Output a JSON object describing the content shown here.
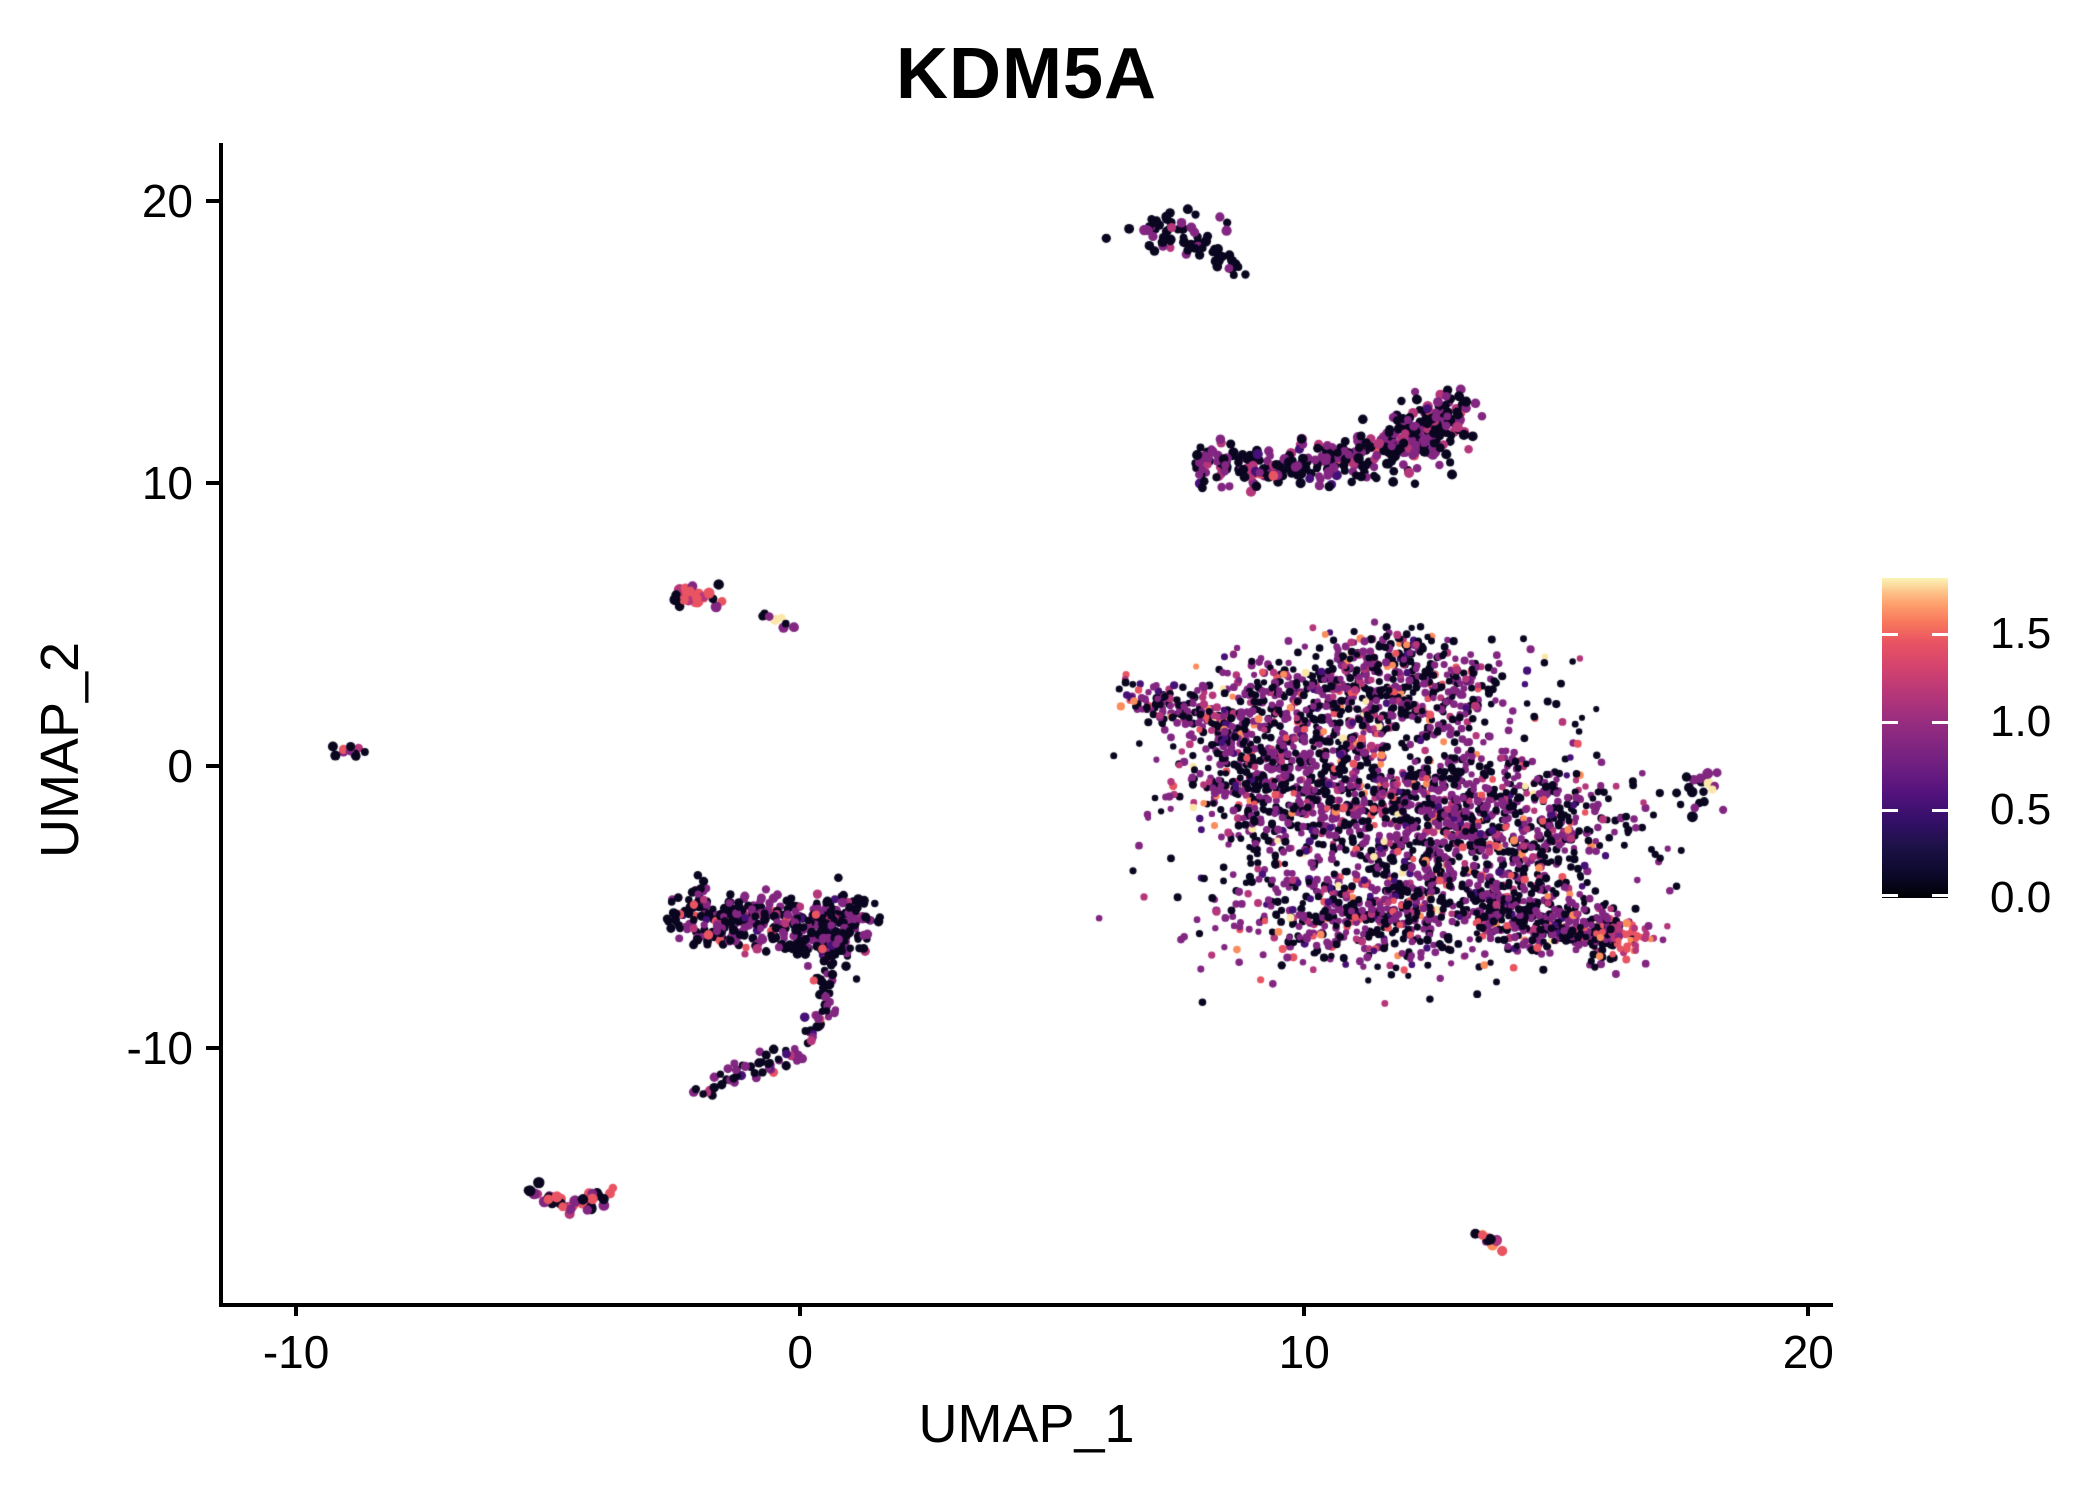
{
  "chart_data": {
    "type": "scatter",
    "title": "KDM5A",
    "xlabel": "UMAP_1",
    "ylabel": "UMAP_2",
    "xlim": [
      -11.45,
      20.43
    ],
    "ylim": [
      -19.03,
      22.06
    ],
    "grid": false,
    "xticks": [
      {
        "v": -10,
        "label": "-10"
      },
      {
        "v": 0,
        "label": "0"
      },
      {
        "v": 10,
        "label": "10"
      },
      {
        "v": 20,
        "label": "20"
      }
    ],
    "yticks": [
      {
        "v": -10,
        "label": "-10"
      },
      {
        "v": 0,
        "label": "0"
      },
      {
        "v": 10,
        "label": "10"
      },
      {
        "v": 20,
        "label": "20"
      }
    ],
    "colorbar": {
      "legend_for": "expression",
      "vmin": 0.0,
      "vmax": 1.82,
      "tick_values": [
        0.0,
        0.5,
        1.0,
        1.5
      ],
      "tick_labels": [
        "0.0",
        "0.5",
        "1.0",
        "1.5"
      ],
      "gradient": [
        {
          "pos": 0.0,
          "color": "#000004"
        },
        {
          "pos": 0.08,
          "color": "#0D0A2D"
        },
        {
          "pos": 0.16,
          "color": "#1D1147"
        },
        {
          "pos": 0.24,
          "color": "#331068"
        },
        {
          "pos": 0.32,
          "color": "#51127C"
        },
        {
          "pos": 0.4,
          "color": "#6B1D81"
        },
        {
          "pos": 0.48,
          "color": "#822681"
        },
        {
          "pos": 0.56,
          "color": "#9B2E7F"
        },
        {
          "pos": 0.64,
          "color": "#B73779"
        },
        {
          "pos": 0.72,
          "color": "#D3436E"
        },
        {
          "pos": 0.8,
          "color": "#E95462"
        },
        {
          "pos": 0.86,
          "color": "#F8765C"
        },
        {
          "pos": 0.92,
          "color": "#FEA16E"
        },
        {
          "pos": 0.96,
          "color": "#FDC78C"
        },
        {
          "pos": 1.0,
          "color": "#FCF4B6"
        }
      ]
    },
    "palette": {
      "black": "#0A0620",
      "dark_purple": "#451077",
      "purple": "#822681",
      "magenta": "#B5367A",
      "pink": "#E95462",
      "orange": "#FB8C5C",
      "yellow": "#FBE7A9"
    },
    "seed": 42,
    "clusters": [
      {
        "name": "comet-top",
        "radius": 4.5,
        "mix": {
          "black": 78,
          "purple": 16,
          "magenta": 6
        },
        "parts": [
          {
            "kind": "blob",
            "cx": 7.45,
            "cy": 18.9,
            "sx": 0.42,
            "sy": 0.38,
            "n": 48
          },
          {
            "kind": "path",
            "pts": [
              [
                7.9,
                18.45
              ],
              [
                8.75,
                17.45
              ]
            ],
            "th": 0.18,
            "n": 26
          }
        ]
      },
      {
        "name": "crescent",
        "radius": 4.5,
        "mix": {
          "black": 51,
          "dark_purple": 4,
          "purple": 32,
          "magenta": 10,
          "pink": 3
        },
        "parts": [
          {
            "kind": "path",
            "pts": [
              [
                7.85,
                10.75
              ],
              [
                9.3,
                10.55
              ],
              [
                10.8,
                10.8
              ],
              [
                12.0,
                11.35
              ],
              [
                13.15,
                12.85
              ]
            ],
            "th": 0.4,
            "n": 330
          },
          {
            "kind": "blob",
            "cx": 12.35,
            "cy": 11.7,
            "sx": 0.5,
            "sy": 0.65,
            "n": 90
          }
        ]
      },
      {
        "name": "main-blob",
        "radius": 3.6,
        "mix": {
          "black": 44,
          "dark_purple": 4,
          "purple": 35,
          "magenta": 8,
          "pink": 5,
          "orange": 3,
          "yellow": 1
        },
        "parts": [
          {
            "kind": "path",
            "pts": [
              [
                6.45,
                2.7
              ],
              [
                8.8,
                1.15
              ]
            ],
            "th": 0.35,
            "n": 150
          },
          {
            "kind": "blob",
            "cx": 11.2,
            "cy": 2.55,
            "sx": 1.45,
            "sy": 0.85,
            "n": 620
          },
          {
            "kind": "blob",
            "cx": 11.75,
            "cy": 4.2,
            "sx": 0.55,
            "sy": 0.45,
            "n": 70
          },
          {
            "kind": "blob",
            "cx": 9.2,
            "cy": -0.2,
            "sx": 0.95,
            "sy": 1.35,
            "n": 430
          },
          {
            "kind": "blob",
            "cx": 11.7,
            "cy": -1.3,
            "sx": 1.5,
            "sy": 1.4,
            "n": 780
          },
          {
            "kind": "blob",
            "cx": 14.2,
            "cy": -2.3,
            "sx": 1.15,
            "sy": 1.5,
            "n": 540
          },
          {
            "kind": "blob",
            "cx": 11.4,
            "cy": -5.2,
            "sx": 1.6,
            "sy": 1.05,
            "n": 600
          },
          {
            "kind": "path",
            "pts": [
              [
                13.6,
                -5.1
              ],
              [
                16.2,
                -6.0
              ]
            ],
            "th": 0.55,
            "n": 330
          },
          {
            "kind": "blob",
            "cx": 16.35,
            "cy": -6.05,
            "sx": 0.3,
            "sy": 0.35,
            "n": 55,
            "mix": {
              "pink": 35,
              "magenta": 25,
              "orange": 20,
              "purple": 10,
              "black": 10
            }
          }
        ]
      },
      {
        "name": "left-small",
        "radius": 5,
        "mix": {
          "black": 28,
          "purple": 22,
          "magenta": 18,
          "pink": 32
        },
        "parts": [
          {
            "kind": "path",
            "pts": [
              [
                -2.45,
                6.15
              ],
              [
                -1.6,
                5.85
              ]
            ],
            "th": 0.2,
            "n": 26
          }
        ]
      },
      {
        "name": "left-tiny-pair",
        "radius": 4.5,
        "mix": {
          "black": 30,
          "purple": 40,
          "yellow": 30
        },
        "parts": [
          {
            "kind": "blob",
            "cx": -0.75,
            "cy": 5.4,
            "sx": 0.04,
            "sy": 0.04,
            "n": 2,
            "mix": {
              "black": 100
            }
          },
          {
            "kind": "path",
            "pts": [
              [
                -0.5,
                5.15
              ],
              [
                -0.2,
                5.0
              ]
            ],
            "th": 0.09,
            "n": 6
          }
        ]
      },
      {
        "name": "far-left-tiny",
        "radius": 4.5,
        "mix": {
          "black": 40,
          "purple": 22,
          "magenta": 13,
          "pink": 25
        },
        "parts": [
          {
            "kind": "blob",
            "cx": -9.0,
            "cy": 0.5,
            "sx": 0.2,
            "sy": 0.12,
            "n": 11
          }
        ]
      },
      {
        "name": "seahorse",
        "radius": 4.2,
        "mix": {
          "black": 55,
          "dark_purple": 4,
          "purple": 31,
          "magenta": 7,
          "pink": 3
        },
        "parts": [
          {
            "kind": "path",
            "pts": [
              [
                -2.55,
                -5.0
              ],
              [
                -0.5,
                -5.3
              ],
              [
                1.35,
                -5.35
              ]
            ],
            "th": 0.45,
            "n": 300
          },
          {
            "kind": "blob",
            "cx": -1.3,
            "cy": -5.95,
            "sx": 0.5,
            "sy": 0.35,
            "n": 60
          },
          {
            "kind": "blob",
            "cx": 0.35,
            "cy": -6.25,
            "sx": 0.6,
            "sy": 0.45,
            "n": 90
          },
          {
            "kind": "path",
            "pts": [
              [
                0.9,
                -6.1
              ],
              [
                0.35,
                -7.3
              ],
              [
                0.55,
                -8.6
              ],
              [
                -0.1,
                -10.2
              ],
              [
                -1.1,
                -10.9
              ],
              [
                -2.05,
                -11.5
              ]
            ],
            "th": 0.2,
            "n": 110
          }
        ]
      },
      {
        "name": "check-bottom-left",
        "radius": 5,
        "mix": {
          "black": 34,
          "purple": 30,
          "magenta": 11,
          "pink": 25
        },
        "parts": [
          {
            "kind": "path",
            "pts": [
              [
                -5.3,
                -14.95
              ],
              [
                -4.55,
                -15.75
              ],
              [
                -3.75,
                -15.1
              ]
            ],
            "th": 0.18,
            "n": 40
          }
        ]
      },
      {
        "name": "bottom-right-tiny",
        "radius": 4.8,
        "mix": {
          "black": 25,
          "purple": 15,
          "magenta": 20,
          "pink": 15,
          "orange": 25
        },
        "parts": [
          {
            "kind": "path",
            "pts": [
              [
                13.45,
                -16.55
              ],
              [
                14.0,
                -17.15
              ]
            ],
            "th": 0.12,
            "n": 13
          }
        ]
      },
      {
        "name": "right-small",
        "radius": 4.8,
        "mix": {
          "black": 28,
          "purple": 42,
          "orange": 16,
          "yellow": 14
        },
        "parts": [
          {
            "kind": "blob",
            "cx": 17.95,
            "cy": -0.7,
            "sx": 0.26,
            "sy": 0.3,
            "n": 13
          },
          {
            "kind": "path",
            "pts": [
              [
                17.7,
                -1.55
              ],
              [
                17.9,
                -1.05
              ]
            ],
            "th": 0.08,
            "n": 5,
            "mix": {
              "black": 85,
              "purple": 15
            }
          }
        ]
      }
    ]
  }
}
